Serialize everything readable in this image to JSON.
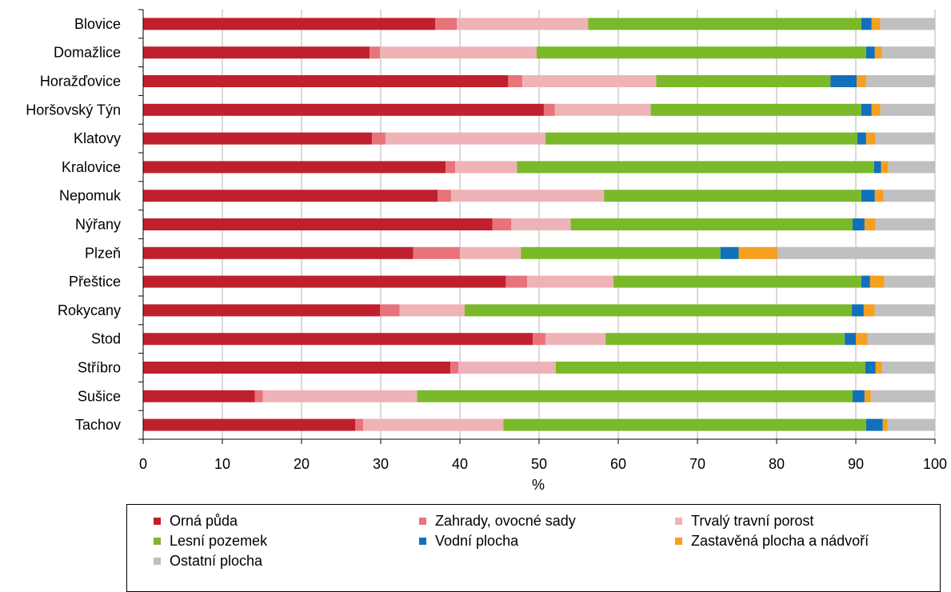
{
  "chart_data": {
    "type": "bar",
    "orientation": "horizontal",
    "stacked": true,
    "xlabel": "%",
    "xlim": [
      0,
      100
    ],
    "x_ticks": [
      0,
      10,
      20,
      30,
      40,
      50,
      60,
      70,
      80,
      90,
      100
    ],
    "grid": true,
    "legend_position": "bottom",
    "categories": [
      "Blovice",
      "Domažlice",
      "Horažďovice",
      "Horšovský Týn",
      "Klatovy",
      "Kralovice",
      "Nepomuk",
      "Nýřany",
      "Plzeň",
      "Přeštice",
      "Rokycany",
      "Stod",
      "Stříbro",
      "Sušice",
      "Tachov"
    ],
    "series": [
      {
        "name": "Orná půda",
        "color": "#c0202e",
        "values": [
          36.9,
          28.6,
          46.1,
          50.6,
          28.9,
          38.2,
          37.2,
          44.1,
          34.1,
          45.8,
          29.9,
          49.2,
          38.8,
          14.1,
          26.8
        ]
      },
      {
        "name": "Zahrady, ovocné sady",
        "color": "#e8737a",
        "values": [
          2.7,
          1.3,
          1.8,
          1.4,
          1.7,
          1.2,
          1.7,
          2.4,
          5.9,
          2.7,
          2.5,
          1.6,
          1.0,
          1.0,
          1.0
        ]
      },
      {
        "name": "Trvalý travní porost",
        "color": "#eeb3b7",
        "values": [
          16.6,
          19.8,
          16.9,
          12.1,
          20.2,
          7.8,
          19.3,
          7.5,
          7.7,
          10.9,
          8.2,
          7.6,
          12.3,
          19.5,
          17.7
        ]
      },
      {
        "name": "Lesní pozemek",
        "color": "#7ab929",
        "values": [
          34.5,
          41.6,
          22.0,
          26.6,
          39.4,
          45.1,
          32.5,
          35.6,
          25.2,
          31.3,
          48.9,
          30.2,
          39.1,
          55.0,
          45.8
        ]
      },
      {
        "name": "Vodní plocha",
        "color": "#1070bb",
        "values": [
          1.3,
          1.1,
          3.3,
          1.3,
          1.1,
          0.9,
          1.7,
          1.5,
          2.3,
          1.1,
          1.5,
          1.4,
          1.3,
          1.5,
          2.1
        ]
      },
      {
        "name": "Zastavěná plocha a nádvoří",
        "color": "#f5a020",
        "values": [
          1.1,
          0.9,
          1.2,
          1.1,
          1.2,
          0.9,
          1.1,
          1.4,
          4.9,
          1.8,
          1.4,
          1.5,
          0.8,
          0.8,
          0.6
        ]
      },
      {
        "name": "Ostatní plocha",
        "color": "#c0c0c0",
        "values": [
          6.9,
          6.7,
          8.7,
          6.9,
          7.5,
          5.9,
          6.5,
          7.5,
          19.9,
          6.4,
          7.6,
          8.5,
          6.7,
          8.1,
          6.0
        ]
      }
    ]
  }
}
